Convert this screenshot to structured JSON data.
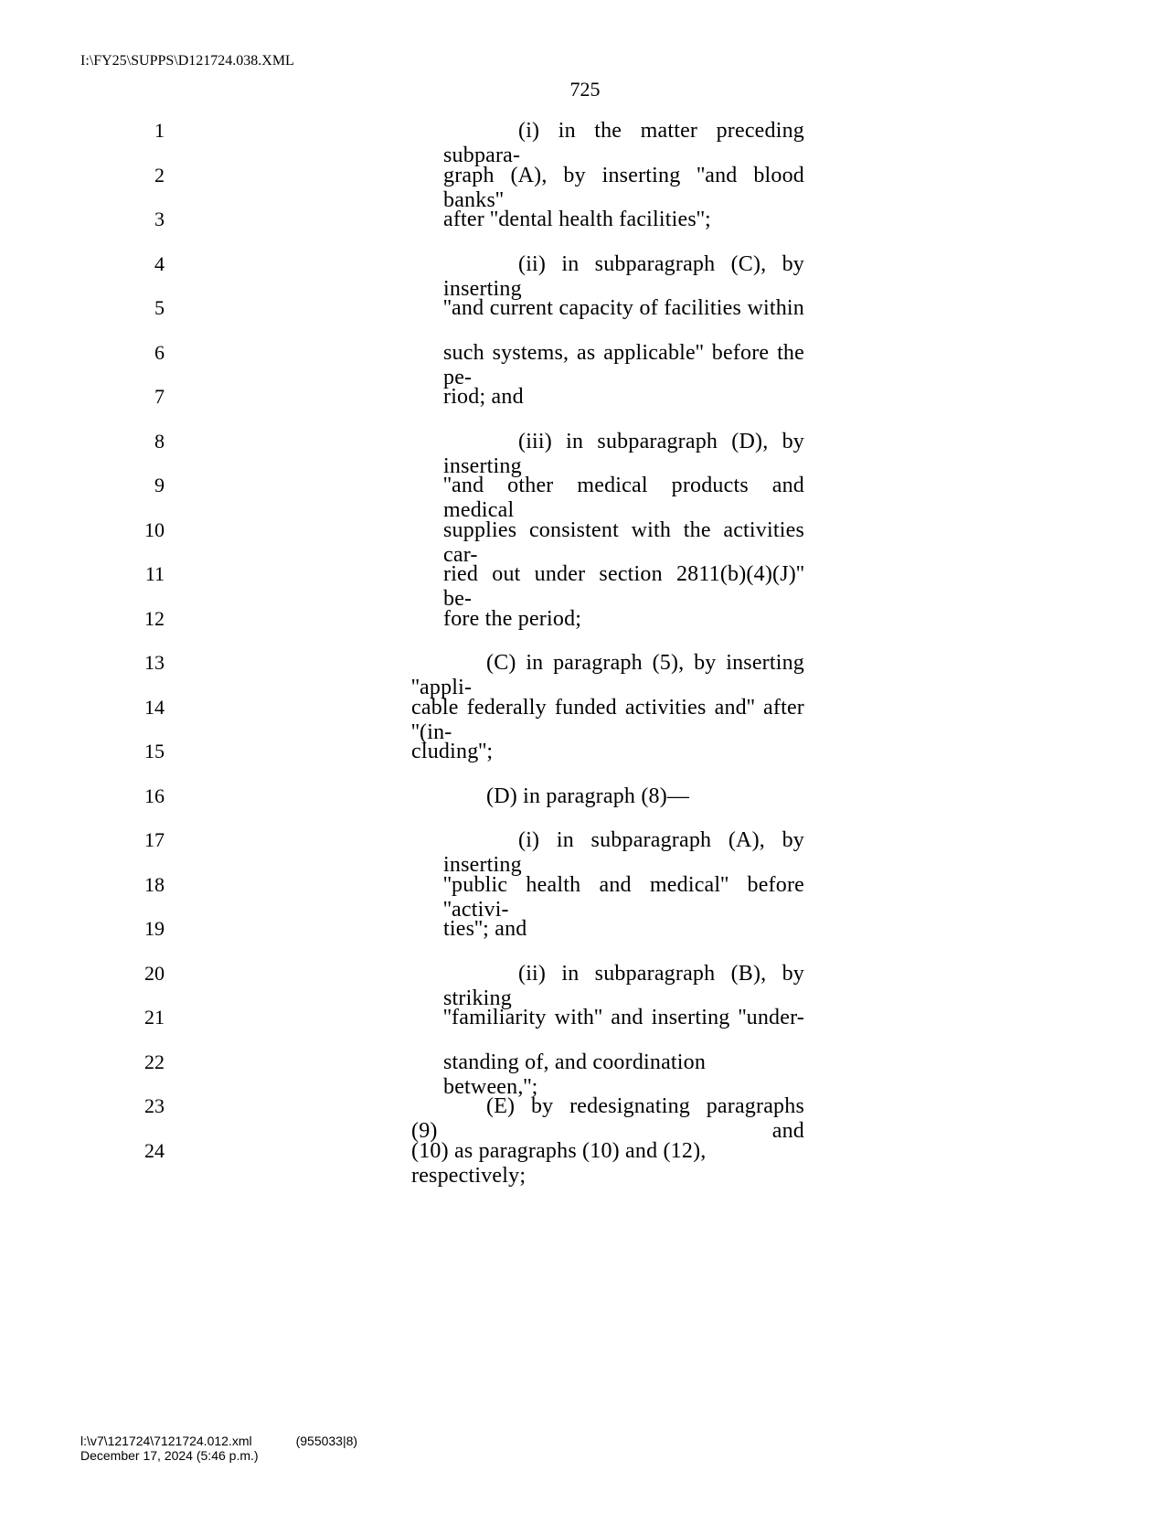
{
  "header": {
    "file_path": "I:\\FY25\\SUPPS\\D121724.038.XML"
  },
  "page_number": "725",
  "lines": [
    {
      "num": "1",
      "text": "(i) in the matter preceding subpara-",
      "indent": "indent-3",
      "justify": true,
      "first_pad": 82
    },
    {
      "num": "2",
      "text": "graph (A), by inserting ''and blood banks''",
      "indent": "indent-3",
      "justify": true,
      "first_pad": 0
    },
    {
      "num": "3",
      "text": "after ''dental health facilities'';",
      "indent": "indent-3",
      "justify": false,
      "first_pad": 0
    },
    {
      "num": "4",
      "text": "(ii) in subparagraph (C), by inserting",
      "indent": "indent-3",
      "justify": true,
      "first_pad": 82
    },
    {
      "num": "5",
      "text": "''and current capacity of facilities within",
      "indent": "indent-3",
      "justify": true,
      "first_pad": 0
    },
    {
      "num": "6",
      "text": "such systems, as applicable'' before the pe-",
      "indent": "indent-3",
      "justify": true,
      "first_pad": 0
    },
    {
      "num": "7",
      "text": "riod; and",
      "indent": "indent-3",
      "justify": false,
      "first_pad": 0
    },
    {
      "num": "8",
      "text": "(iii) in subparagraph (D), by inserting",
      "indent": "indent-3",
      "justify": true,
      "first_pad": 82
    },
    {
      "num": "9",
      "text": "''and other medical products and medical",
      "indent": "indent-3",
      "justify": true,
      "first_pad": 0
    },
    {
      "num": "10",
      "text": "supplies consistent with the activities car-",
      "indent": "indent-3",
      "justify": true,
      "first_pad": 0
    },
    {
      "num": "11",
      "text": "ried out under section 2811(b)(4)(J)'' be-",
      "indent": "indent-3",
      "justify": true,
      "first_pad": 0
    },
    {
      "num": "12",
      "text": "fore the period;",
      "indent": "indent-3",
      "justify": false,
      "first_pad": 0
    },
    {
      "num": "13",
      "text": "(C) in paragraph (5), by inserting ''appli-",
      "indent": "indent-1",
      "justify": true,
      "first_pad": 82
    },
    {
      "num": "14",
      "text": "cable federally funded activities and'' after ''(in-",
      "indent": "indent-1",
      "justify": true,
      "first_pad": 0
    },
    {
      "num": "15",
      "text": "cluding'';",
      "indent": "indent-1",
      "justify": false,
      "first_pad": 0
    },
    {
      "num": "16",
      "text": "(D) in paragraph (8)—",
      "indent": "indent-1",
      "justify": false,
      "first_pad": 82
    },
    {
      "num": "17",
      "text": "(i) in subparagraph (A), by inserting",
      "indent": "indent-3",
      "justify": true,
      "first_pad": 82
    },
    {
      "num": "18",
      "text": "''public health and medical'' before ''activi-",
      "indent": "indent-3",
      "justify": true,
      "first_pad": 0
    },
    {
      "num": "19",
      "text": "ties''; and",
      "indent": "indent-3",
      "justify": false,
      "first_pad": 0
    },
    {
      "num": "20",
      "text": "(ii) in subparagraph (B), by striking",
      "indent": "indent-3",
      "justify": true,
      "first_pad": 82
    },
    {
      "num": "21",
      "text": "''familiarity with'' and inserting ''under-",
      "indent": "indent-3",
      "justify": true,
      "first_pad": 0
    },
    {
      "num": "22",
      "text": "standing of, and coordination between,'';",
      "indent": "indent-3",
      "justify": false,
      "first_pad": 0
    },
    {
      "num": "23",
      "text": "(E) by redesignating paragraphs (9) and",
      "indent": "indent-1",
      "justify": true,
      "first_pad": 82
    },
    {
      "num": "24",
      "text": "(10) as paragraphs (10) and (12), respectively;",
      "indent": "indent-1",
      "justify": false,
      "first_pad": 0
    }
  ],
  "footer": {
    "path": "l:\\v7\\121724\\7121724.012.xml",
    "code": "(955033|8)",
    "date": "December 17, 2024 (5:46 p.m.)"
  }
}
